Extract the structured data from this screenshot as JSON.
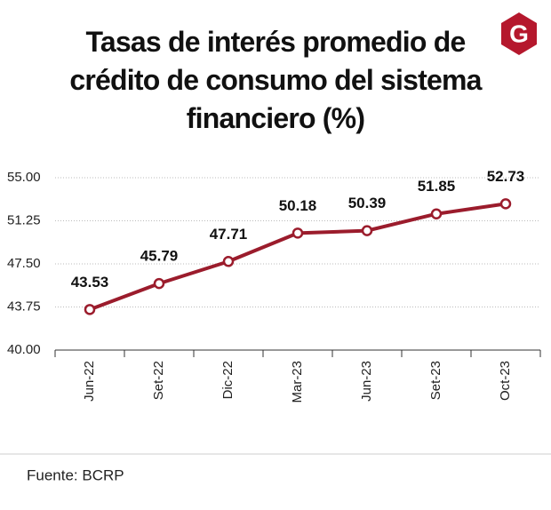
{
  "logo": "G",
  "chart_data": {
    "type": "line",
    "title": "Tasas de interés promedio de crédito de consumo del sistema financiero (%)",
    "source": "Fuente: BCRP",
    "categories": [
      "Jun-22",
      "Set-22",
      "Dic-22",
      "Mar-23",
      "Jun-23",
      "Set-23",
      "Oct-23"
    ],
    "values": [
      43.53,
      45.79,
      47.71,
      50.18,
      50.39,
      51.85,
      52.73
    ],
    "color": "#9b1c2c",
    "ylim": [
      40,
      55
    ],
    "yticks": [
      {
        "value": 40,
        "label": "40.00"
      },
      {
        "value": 43.75,
        "label": "43.75"
      },
      {
        "value": 47.5,
        "label": "47.50"
      },
      {
        "value": 51.25,
        "label": "51.25"
      },
      {
        "value": 55,
        "label": "55.00"
      }
    ],
    "grid": true
  }
}
